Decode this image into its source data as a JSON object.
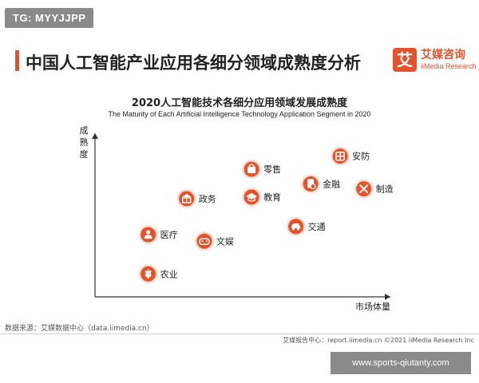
{
  "tag_label": "TG: MYYJJPP",
  "page_title": "中国人工智能产业应用各细分领域成熟度分析",
  "brand": {
    "cn": "艾媒咨询",
    "en": "iiMedia Research",
    "mark": "艾"
  },
  "chart_data": {
    "type": "scatter",
    "title": "2020人工智能技术各细分应用领域发展成熟度",
    "subtitle": "The Maturity of Each Artificial Intelligence Technology Application Segment in 2020",
    "xlabel": "市场体量",
    "ylabel": "成熟度",
    "xlim": [
      0,
      100
    ],
    "ylim": [
      0,
      100
    ],
    "grid": false,
    "accent_color": "#e2532b",
    "points": [
      {
        "label": "安防",
        "x": 83,
        "y": 86,
        "icon": "shield-icon"
      },
      {
        "label": "零售",
        "x": 53,
        "y": 78,
        "icon": "shopping-bag-icon"
      },
      {
        "label": "金融",
        "x": 73,
        "y": 69,
        "icon": "finance-icon"
      },
      {
        "label": "制造",
        "x": 91,
        "y": 66,
        "icon": "wrench-icon"
      },
      {
        "label": "政务",
        "x": 31,
        "y": 60,
        "icon": "government-building-icon"
      },
      {
        "label": "教育",
        "x": 53,
        "y": 61,
        "icon": "graduation-cap-icon"
      },
      {
        "label": "交通",
        "x": 68,
        "y": 43,
        "icon": "car-icon"
      },
      {
        "label": "医疗",
        "x": 18,
        "y": 38,
        "icon": "medical-icon"
      },
      {
        "label": "文娱",
        "x": 37,
        "y": 34,
        "icon": "gamepad-icon"
      },
      {
        "label": "农业",
        "x": 18,
        "y": 14,
        "icon": "wheat-icon"
      }
    ]
  },
  "source": "数据来源：艾媒数据中心（data.iimedia.cn）",
  "copyright": "艾媒报告中心：report.iimedia.cn    ©2021  iiMedia Research  Inc",
  "watermark": "www.sports-qiutanty.com"
}
